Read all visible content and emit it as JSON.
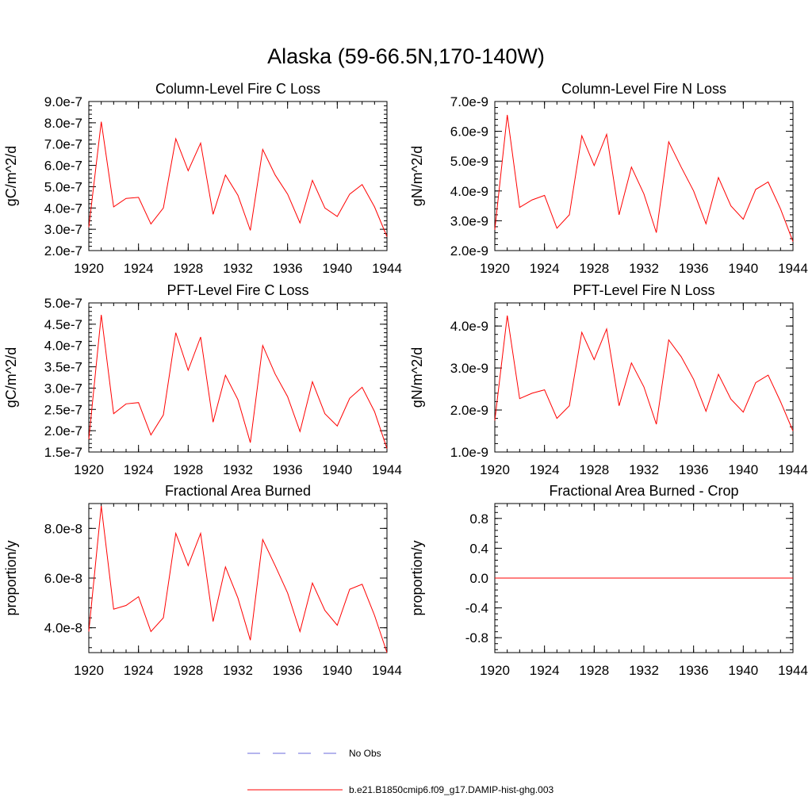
{
  "figure": {
    "title": "Alaska (59-66.5N,170-140W)",
    "colors": {
      "model": "#ff0000",
      "obs": "#6b6bdb",
      "axis": "#000000"
    }
  },
  "legend": {
    "entries": [
      {
        "label": "No Obs",
        "style": "dashed",
        "color": "#6b6bdb"
      },
      {
        "label": "b.e21.B1850cmip6.f09_g17.DAMIP-hist-ghg.003",
        "style": "solid",
        "color": "#ff0000"
      }
    ]
  },
  "chart_data": [
    {
      "type": "line",
      "title": "Column-Level Fire C Loss",
      "xlabel": "",
      "ylabel": "gC/m^2/d",
      "xlim": [
        1920,
        1944
      ],
      "ylim": [
        2e-07,
        9e-07
      ],
      "xticks": [
        1920,
        1924,
        1928,
        1932,
        1936,
        1940,
        1944
      ],
      "xtick_labels": [
        "1920",
        "1924",
        "1928",
        "1932",
        "1936",
        "1940",
        "1944"
      ],
      "yticks": [
        2e-07,
        3e-07,
        4e-07,
        5e-07,
        6e-07,
        7e-07,
        8e-07,
        9e-07
      ],
      "ytick_labels": [
        "2.0e-7",
        "3.0e-7",
        "4.0e-7",
        "5.0e-7",
        "6.0e-7",
        "7.0e-7",
        "8.0e-7",
        "9.0e-7"
      ],
      "x": [
        1920,
        1921,
        1922,
        1923,
        1924,
        1925,
        1926,
        1927,
        1928,
        1929,
        1930,
        1931,
        1932,
        1933,
        1934,
        1935,
        1936,
        1937,
        1938,
        1939,
        1940,
        1941,
        1942,
        1943,
        1944
      ],
      "series": [
        {
          "values": [
            3.1e-07,
            8.05e-07,
            4.05e-07,
            4.45e-07,
            4.5e-07,
            3.25e-07,
            4e-07,
            7.25e-07,
            5.75e-07,
            7.05e-07,
            3.7e-07,
            5.55e-07,
            4.6e-07,
            2.95e-07,
            6.75e-07,
            5.55e-07,
            4.65e-07,
            3.3e-07,
            5.3e-07,
            4e-07,
            3.6e-07,
            4.65e-07,
            5.1e-07,
            4.05e-07,
            2.65e-07
          ]
        }
      ]
    },
    {
      "type": "line",
      "title": "Column-Level Fire N Loss",
      "xlabel": "",
      "ylabel": "gN/m^2/d",
      "xlim": [
        1920,
        1944
      ],
      "ylim": [
        2e-09,
        7e-09
      ],
      "xticks": [
        1920,
        1924,
        1928,
        1932,
        1936,
        1940,
        1944
      ],
      "xtick_labels": [
        "1920",
        "1924",
        "1928",
        "1932",
        "1936",
        "1940",
        "1944"
      ],
      "yticks": [
        2e-09,
        3e-09,
        4e-09,
        5e-09,
        6e-09,
        7e-09
      ],
      "ytick_labels": [
        "2.0e-9",
        "3.0e-9",
        "4.0e-9",
        "5.0e-9",
        "6.0e-9",
        "7.0e-9"
      ],
      "x": [
        1920,
        1921,
        1922,
        1923,
        1924,
        1925,
        1926,
        1927,
        1928,
        1929,
        1930,
        1931,
        1932,
        1933,
        1934,
        1935,
        1936,
        1937,
        1938,
        1939,
        1940,
        1941,
        1942,
        1943,
        1944
      ],
      "series": [
        {
          "values": [
            2.7e-09,
            6.55e-09,
            3.45e-09,
            3.7e-09,
            3.85e-09,
            2.75e-09,
            3.2e-09,
            5.85e-09,
            4.85e-09,
            5.9e-09,
            3.2e-09,
            4.8e-09,
            3.9e-09,
            2.6e-09,
            5.65e-09,
            4.8e-09,
            4e-09,
            2.9e-09,
            4.45e-09,
            3.5e-09,
            3.05e-09,
            4.05e-09,
            4.3e-09,
            3.4e-09,
            2.3e-09
          ]
        }
      ]
    },
    {
      "type": "line",
      "title": "PFT-Level Fire C Loss",
      "xlabel": "",
      "ylabel": "gC/m^2/d",
      "xlim": [
        1920,
        1944
      ],
      "ylim": [
        1.5e-07,
        5e-07
      ],
      "xticks": [
        1920,
        1924,
        1928,
        1932,
        1936,
        1940,
        1944
      ],
      "xtick_labels": [
        "1920",
        "1924",
        "1928",
        "1932",
        "1936",
        "1940",
        "1944"
      ],
      "yticks": [
        1.5e-07,
        2e-07,
        2.5e-07,
        3e-07,
        3.5e-07,
        4e-07,
        4.5e-07,
        5e-07
      ],
      "ytick_labels": [
        "1.5e-7",
        "2.0e-7",
        "2.5e-7",
        "3.0e-7",
        "3.5e-7",
        "4.0e-7",
        "4.5e-7",
        "5.0e-7"
      ],
      "x": [
        1920,
        1921,
        1922,
        1923,
        1924,
        1925,
        1926,
        1927,
        1928,
        1929,
        1930,
        1931,
        1932,
        1933,
        1934,
        1935,
        1936,
        1937,
        1938,
        1939,
        1940,
        1941,
        1942,
        1943,
        1944
      ],
      "series": [
        {
          "values": [
            1.8e-07,
            4.72e-07,
            2.4e-07,
            2.63e-07,
            2.66e-07,
            1.9e-07,
            2.37e-07,
            4.3e-07,
            3.42e-07,
            4.2e-07,
            2.2e-07,
            3.3e-07,
            2.73e-07,
            1.72e-07,
            4e-07,
            3.33e-07,
            2.8e-07,
            1.98e-07,
            3.15e-07,
            2.4e-07,
            2.11e-07,
            2.76e-07,
            3.02e-07,
            2.45e-07,
            1.58e-07
          ]
        }
      ]
    },
    {
      "type": "line",
      "title": "PFT-Level Fire N Loss",
      "xlabel": "",
      "ylabel": "gN/m^2/d",
      "xlim": [
        1920,
        1944
      ],
      "ylim": [
        1e-09,
        4.55e-09
      ],
      "xticks": [
        1920,
        1924,
        1928,
        1932,
        1936,
        1940,
        1944
      ],
      "xtick_labels": [
        "1920",
        "1924",
        "1928",
        "1932",
        "1936",
        "1940",
        "1944"
      ],
      "yticks": [
        1e-09,
        2e-09,
        3e-09,
        4e-09
      ],
      "ytick_labels": [
        "1.0e-9",
        "2.0e-9",
        "3.0e-9",
        "4.0e-9"
      ],
      "x": [
        1920,
        1921,
        1922,
        1923,
        1924,
        1925,
        1926,
        1927,
        1928,
        1929,
        1930,
        1931,
        1932,
        1933,
        1934,
        1935,
        1936,
        1937,
        1938,
        1939,
        1940,
        1941,
        1942,
        1943,
        1944
      ],
      "series": [
        {
          "values": [
            1.75e-09,
            4.25e-09,
            2.27e-09,
            2.4e-09,
            2.48e-09,
            1.8e-09,
            2.1e-09,
            3.85e-09,
            3.2e-09,
            3.93e-09,
            2.1e-09,
            3.12e-09,
            2.55e-09,
            1.66e-09,
            3.67e-09,
            3.27e-09,
            2.73e-09,
            1.97e-09,
            2.85e-09,
            2.26e-09,
            1.95e-09,
            2.65e-09,
            2.83e-09,
            2.2e-09,
            1.5e-09
          ]
        }
      ]
    },
    {
      "type": "line",
      "title": "Fractional Area Burned",
      "xlabel": "",
      "ylabel": "proportion/y",
      "xlim": [
        1920,
        1944
      ],
      "ylim": [
        3e-08,
        9e-08
      ],
      "xticks": [
        1920,
        1924,
        1928,
        1932,
        1936,
        1940,
        1944
      ],
      "xtick_labels": [
        "1920",
        "1924",
        "1928",
        "1932",
        "1936",
        "1940",
        "1944"
      ],
      "yticks": [
        4e-08,
        6e-08,
        8e-08
      ],
      "ytick_labels": [
        "4.0e-8",
        "6.0e-8",
        "8.0e-8"
      ],
      "x": [
        1920,
        1921,
        1922,
        1923,
        1924,
        1925,
        1926,
        1927,
        1928,
        1929,
        1930,
        1931,
        1932,
        1933,
        1934,
        1935,
        1936,
        1937,
        1938,
        1939,
        1940,
        1941,
        1942,
        1943,
        1944
      ],
      "series": [
        {
          "values": [
            3.85e-08,
            8.9e-08,
            4.75e-08,
            4.9e-08,
            5.25e-08,
            3.85e-08,
            4.4e-08,
            7.8e-08,
            6.5e-08,
            7.8e-08,
            4.25e-08,
            6.45e-08,
            5.2e-08,
            3.5e-08,
            7.55e-08,
            6.5e-08,
            5.4e-08,
            3.85e-08,
            5.8e-08,
            4.7e-08,
            4.1e-08,
            5.55e-08,
            5.75e-08,
            4.5e-08,
            3e-08
          ]
        }
      ]
    },
    {
      "type": "line",
      "title": "Fractional Area Burned - Crop",
      "xlabel": "",
      "ylabel": "proportion/y",
      "xlim": [
        1920,
        1944
      ],
      "ylim": [
        -1.0,
        1.0
      ],
      "xticks": [
        1920,
        1924,
        1928,
        1932,
        1936,
        1940,
        1944
      ],
      "xtick_labels": [
        "1920",
        "1924",
        "1928",
        "1932",
        "1936",
        "1940",
        "1944"
      ],
      "yticks": [
        -0.8,
        -0.4,
        0.0,
        0.4,
        0.8
      ],
      "ytick_labels": [
        "-0.8",
        "-0.4",
        "0.0",
        "0.4",
        "0.8"
      ],
      "x": [
        1920,
        1921,
        1922,
        1923,
        1924,
        1925,
        1926,
        1927,
        1928,
        1929,
        1930,
        1931,
        1932,
        1933,
        1934,
        1935,
        1936,
        1937,
        1938,
        1939,
        1940,
        1941,
        1942,
        1943,
        1944
      ],
      "series": [
        {
          "values": [
            0,
            0,
            0,
            0,
            0,
            0,
            0,
            0,
            0,
            0,
            0,
            0,
            0,
            0,
            0,
            0,
            0,
            0,
            0,
            0,
            0,
            0,
            0,
            0,
            0
          ]
        }
      ]
    }
  ]
}
